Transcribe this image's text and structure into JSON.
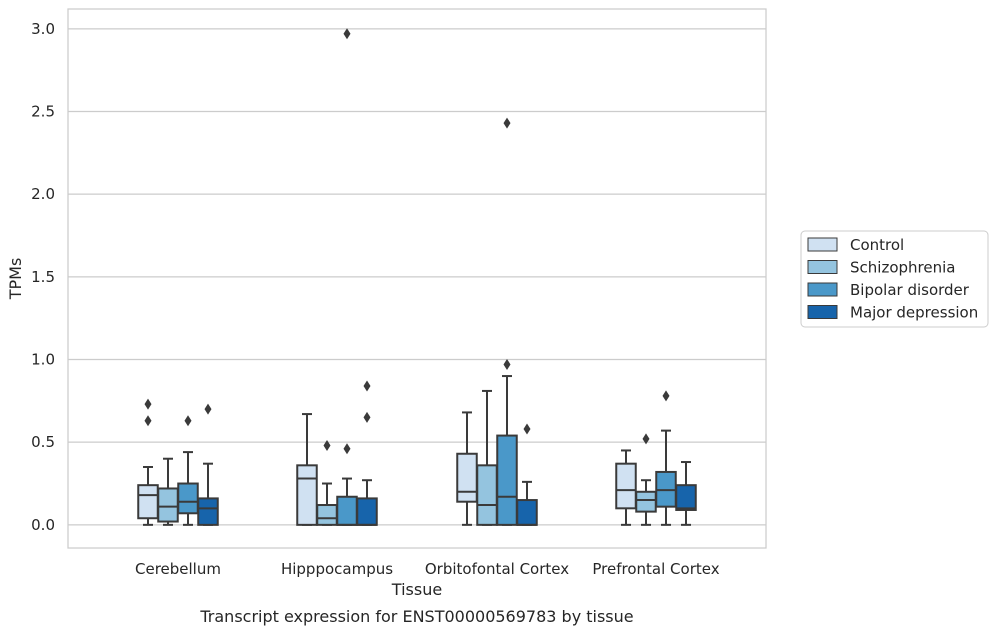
{
  "caption": "Transcript expression for ENST00000569783 by tissue",
  "colors": {
    "Control": "#d0e1f2",
    "Schizophrenia": "#94c4df",
    "Bipolar disorder": "#4a98c9",
    "Major depression": "#1764ab",
    "box_edge": "#3a3a3a",
    "grid": "#cccccc",
    "frame": "#cccccc"
  },
  "chart_data": {
    "type": "box",
    "xlabel": "Tissue",
    "ylabel": "TPMs",
    "ylim": [
      -0.14,
      3.12
    ],
    "yticks": [
      0.0,
      0.5,
      1.0,
      1.5,
      2.0,
      2.5,
      3.0
    ],
    "ytick_labels": [
      "0.0",
      "0.5",
      "1.0",
      "1.5",
      "2.0",
      "2.5",
      "3.0"
    ],
    "grid": "horizontal",
    "legend_position": "right",
    "categories": [
      "Cerebellum",
      "Hipppocampus",
      "Orbitofontal Cortex",
      "Prefrontal Cortex"
    ],
    "series": [
      {
        "name": "Control",
        "boxes": [
          {
            "whislo": 0.0,
            "q1": 0.04,
            "med": 0.18,
            "q3": 0.24,
            "whishi": 0.35,
            "fliers": [
              0.63,
              0.73
            ]
          },
          {
            "whislo": 0.0,
            "q1": 0.0,
            "med": 0.28,
            "q3": 0.36,
            "whishi": 0.67,
            "fliers": []
          },
          {
            "whislo": 0.0,
            "q1": 0.14,
            "med": 0.2,
            "q3": 0.43,
            "whishi": 0.68,
            "fliers": []
          },
          {
            "whislo": 0.0,
            "q1": 0.1,
            "med": 0.21,
            "q3": 0.37,
            "whishi": 0.45,
            "fliers": []
          }
        ]
      },
      {
        "name": "Schizophrenia",
        "boxes": [
          {
            "whislo": 0.0,
            "q1": 0.02,
            "med": 0.11,
            "q3": 0.22,
            "whishi": 0.4,
            "fliers": []
          },
          {
            "whislo": 0.0,
            "q1": 0.0,
            "med": 0.04,
            "q3": 0.12,
            "whishi": 0.25,
            "fliers": [
              0.48
            ]
          },
          {
            "whislo": 0.0,
            "q1": 0.0,
            "med": 0.12,
            "q3": 0.36,
            "whishi": 0.81,
            "fliers": []
          },
          {
            "whislo": 0.0,
            "q1": 0.08,
            "med": 0.15,
            "q3": 0.2,
            "whishi": 0.27,
            "fliers": [
              0.52
            ]
          }
        ]
      },
      {
        "name": "Bipolar disorder",
        "boxes": [
          {
            "whislo": 0.0,
            "q1": 0.07,
            "med": 0.14,
            "q3": 0.25,
            "whishi": 0.44,
            "fliers": [
              0.63
            ]
          },
          {
            "whislo": 0.0,
            "q1": 0.0,
            "med": 0.0,
            "q3": 0.17,
            "whishi": 0.28,
            "fliers": [
              0.46,
              2.97
            ]
          },
          {
            "whislo": 0.0,
            "q1": 0.0,
            "med": 0.17,
            "q3": 0.54,
            "whishi": 0.9,
            "fliers": [
              0.97,
              2.43
            ]
          },
          {
            "whislo": 0.0,
            "q1": 0.11,
            "med": 0.21,
            "q3": 0.32,
            "whishi": 0.57,
            "fliers": [
              0.78
            ]
          }
        ]
      },
      {
        "name": "Major depression",
        "boxes": [
          {
            "whislo": 0.0,
            "q1": 0.0,
            "med": 0.1,
            "q3": 0.16,
            "whishi": 0.37,
            "fliers": [
              0.7
            ]
          },
          {
            "whislo": 0.0,
            "q1": 0.0,
            "med": 0.0,
            "q3": 0.16,
            "whishi": 0.27,
            "fliers": [
              0.65,
              0.84
            ]
          },
          {
            "whislo": 0.0,
            "q1": 0.0,
            "med": 0.0,
            "q3": 0.15,
            "whishi": 0.26,
            "fliers": [
              0.58
            ]
          },
          {
            "whislo": 0.0,
            "q1": 0.09,
            "med": 0.1,
            "q3": 0.24,
            "whishi": 0.38,
            "fliers": []
          }
        ]
      }
    ]
  }
}
